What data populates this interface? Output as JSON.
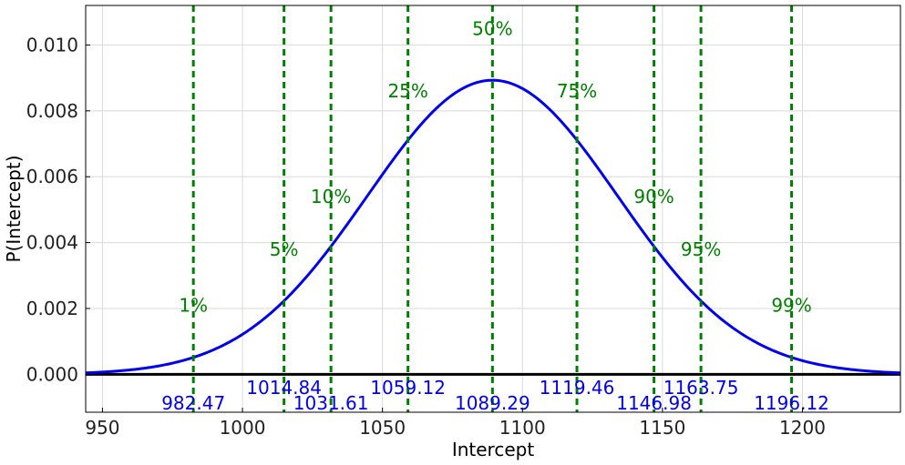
{
  "chart_data": {
    "type": "line",
    "title": "",
    "xlabel": "Intercept",
    "ylabel": "P(Intercept)",
    "xlim": [
      944,
      1235
    ],
    "ylim": [
      -0.00115,
      0.0112
    ],
    "grid": true,
    "x_ticks": [
      "950",
      "1000",
      "1050",
      "1100",
      "1150",
      "1200"
    ],
    "y_ticks": [
      "0.000",
      "0.002",
      "0.004",
      "0.006",
      "0.008",
      "0.010"
    ],
    "x_tick_values": [
      950,
      1000,
      1050,
      1100,
      1150,
      1200
    ],
    "y_tick_values": [
      0.0,
      0.002,
      0.004,
      0.006,
      0.008,
      0.01
    ],
    "distribution": {
      "kind": "normal",
      "mean": 1089.29,
      "sd": 44.7,
      "peak_density": 0.00893,
      "x_range": [
        944,
        1235
      ],
      "color": "#0000ee"
    },
    "baseline": {
      "y": 0.0,
      "color": "#000000"
    },
    "percentiles": [
      {
        "label": "1%",
        "value": "982.47",
        "x": 982.47,
        "label_y": 0.0021
      },
      {
        "label": "5%",
        "value": "1014.84",
        "x": 1014.84,
        "label_y": 0.0038
      },
      {
        "label": "10%",
        "value": "1031.61",
        "x": 1031.61,
        "label_y": 0.0054
      },
      {
        "label": "25%",
        "value": "1059.12",
        "x": 1059.12,
        "label_y": 0.0086
      },
      {
        "label": "50%",
        "value": "1089.29",
        "x": 1089.29,
        "label_y": 0.0105
      },
      {
        "label": "75%",
        "value": "1119.46",
        "x": 1119.46,
        "label_y": 0.0086
      },
      {
        "label": "90%",
        "value": "1146.98",
        "x": 1146.98,
        "label_y": 0.0054
      },
      {
        "label": "95%",
        "value": "1163.75",
        "x": 1163.75,
        "label_y": 0.0038
      },
      {
        "label": "99%",
        "value": "1196.12",
        "x": 1196.12,
        "label_y": 0.0021
      }
    ],
    "percentile_line_color": "#008000"
  }
}
